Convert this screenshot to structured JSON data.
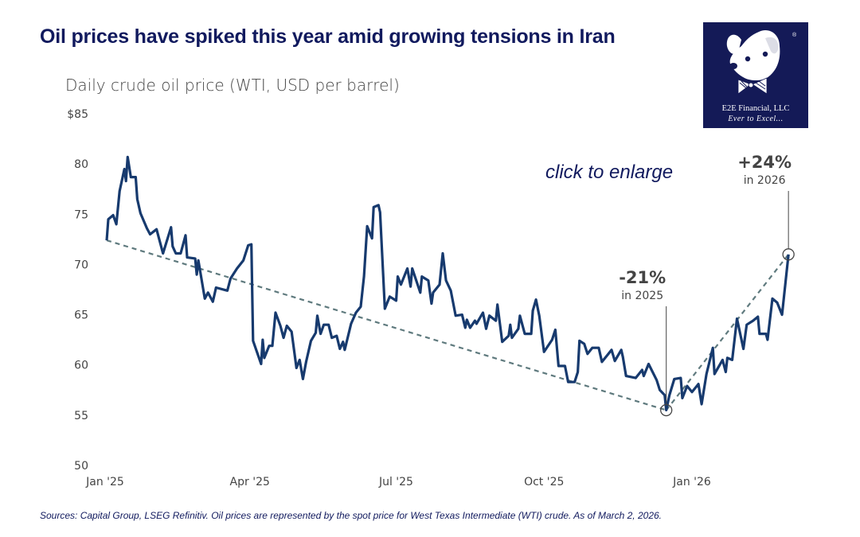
{
  "title": "Oil prices have spiked this year amid growing tensions in Iran",
  "logo": {
    "line1": "E2E Financial, LLC",
    "line2": "Ever to Excel...",
    "background": "#141a57"
  },
  "enlarge_link": "click to enlarge",
  "footnote": "Sources: Capital Group, LSEG Refinitiv. Oil prices are represented by the spot price for West Texas Intermediate (WTI) crude. As of March 2, 2026.",
  "chart_data": {
    "type": "line",
    "title": "Daily crude oil price (WTI, USD per barrel)",
    "ylim": [
      50,
      85
    ],
    "yticks": [
      {
        "value": 85,
        "label": "$85"
      },
      {
        "value": 80,
        "label": "80"
      },
      {
        "value": 75,
        "label": "75"
      },
      {
        "value": 70,
        "label": "70"
      },
      {
        "value": 65,
        "label": "65"
      },
      {
        "value": 60,
        "label": "60"
      },
      {
        "value": 55,
        "label": "55"
      },
      {
        "value": 50,
        "label": "50"
      }
    ],
    "xlim": [
      "2025-01-01",
      "2026-03-02"
    ],
    "xticks": [
      {
        "date": "2025-01-01",
        "label": "Jan '25"
      },
      {
        "date": "2025-04-01",
        "label": "Apr '25"
      },
      {
        "date": "2025-07-01",
        "label": "Jul '25"
      },
      {
        "date": "2025-10-01",
        "label": "Oct '25"
      },
      {
        "date": "2026-01-01",
        "label": "Jan '26"
      }
    ],
    "grid": false,
    "colors": {
      "line": "#173a6e",
      "trend": "#5f7a7e",
      "annotation": "#444444"
    },
    "series": [
      {
        "points": [
          [
            "2025-01-02",
            72.4
          ],
          [
            "2025-01-03",
            74.5
          ],
          [
            "2025-01-06",
            74.9
          ],
          [
            "2025-01-08",
            74.0
          ],
          [
            "2025-01-10",
            77.3
          ],
          [
            "2025-01-13",
            79.5
          ],
          [
            "2025-01-14",
            78.3
          ],
          [
            "2025-01-15",
            80.7
          ],
          [
            "2025-01-17",
            78.7
          ],
          [
            "2025-01-20",
            78.7
          ],
          [
            "2025-01-21",
            76.5
          ],
          [
            "2025-01-23",
            75.1
          ],
          [
            "2025-01-27",
            73.6
          ],
          [
            "2025-01-29",
            73.0
          ],
          [
            "2025-02-02",
            73.5
          ],
          [
            "2025-02-06",
            71.1
          ],
          [
            "2025-02-11",
            73.7
          ],
          [
            "2025-02-12",
            71.8
          ],
          [
            "2025-02-14",
            71.1
          ],
          [
            "2025-02-17",
            71.1
          ],
          [
            "2025-02-20",
            72.9
          ],
          [
            "2025-02-21",
            70.7
          ],
          [
            "2025-02-26",
            70.6
          ],
          [
            "2025-02-27",
            69.0
          ],
          [
            "2025-02-28",
            70.4
          ],
          [
            "2025-03-04",
            66.6
          ],
          [
            "2025-03-06",
            67.2
          ],
          [
            "2025-03-09",
            66.3
          ],
          [
            "2025-03-11",
            67.7
          ],
          [
            "2025-03-18",
            67.4
          ],
          [
            "2025-03-20",
            68.6
          ],
          [
            "2025-03-24",
            69.6
          ],
          [
            "2025-03-28",
            70.4
          ],
          [
            "2025-03-31",
            71.9
          ],
          [
            "2025-04-02",
            72.0
          ],
          [
            "2025-04-03",
            62.4
          ],
          [
            "2025-04-08",
            60.1
          ],
          [
            "2025-04-09",
            62.5
          ],
          [
            "2025-04-10",
            60.7
          ],
          [
            "2025-04-13",
            61.9
          ],
          [
            "2025-04-15",
            61.9
          ],
          [
            "2025-04-17",
            65.2
          ],
          [
            "2025-04-20",
            63.9
          ],
          [
            "2025-04-22",
            62.7
          ],
          [
            "2025-04-24",
            63.9
          ],
          [
            "2025-04-27",
            63.3
          ],
          [
            "2025-04-30",
            59.7
          ],
          [
            "2025-05-02",
            60.5
          ],
          [
            "2025-05-04",
            58.6
          ],
          [
            "2025-05-06",
            60.3
          ],
          [
            "2025-05-09",
            62.4
          ],
          [
            "2025-05-12",
            63.2
          ],
          [
            "2025-05-13",
            64.9
          ],
          [
            "2025-05-15",
            63.1
          ],
          [
            "2025-05-17",
            64.0
          ],
          [
            "2025-05-20",
            64.0
          ],
          [
            "2025-05-22",
            62.7
          ],
          [
            "2025-05-25",
            62.9
          ],
          [
            "2025-05-27",
            61.6
          ],
          [
            "2025-05-29",
            62.3
          ],
          [
            "2025-05-30",
            61.5
          ],
          [
            "2025-06-03",
            64.1
          ],
          [
            "2025-06-06",
            65.2
          ],
          [
            "2025-06-09",
            65.8
          ],
          [
            "2025-06-11",
            68.8
          ],
          [
            "2025-06-13",
            73.8
          ],
          [
            "2025-06-16",
            72.6
          ],
          [
            "2025-06-17",
            75.7
          ],
          [
            "2025-06-20",
            75.9
          ],
          [
            "2025-06-21",
            75.2
          ],
          [
            "2025-06-24",
            65.6
          ],
          [
            "2025-06-27",
            66.8
          ],
          [
            "2025-07-01",
            66.4
          ],
          [
            "2025-07-02",
            68.8
          ],
          [
            "2025-07-04",
            68.0
          ],
          [
            "2025-07-08",
            69.6
          ],
          [
            "2025-07-10",
            67.8
          ],
          [
            "2025-07-11",
            69.6
          ],
          [
            "2025-07-16",
            67.2
          ],
          [
            "2025-07-17",
            68.8
          ],
          [
            "2025-07-21",
            68.4
          ],
          [
            "2025-07-23",
            66.1
          ],
          [
            "2025-07-24",
            67.2
          ],
          [
            "2025-07-28",
            68.0
          ],
          [
            "2025-07-30",
            71.1
          ],
          [
            "2025-08-01",
            68.4
          ],
          [
            "2025-08-04",
            67.4
          ],
          [
            "2025-08-07",
            64.9
          ],
          [
            "2025-08-11",
            65.0
          ],
          [
            "2025-08-13",
            63.7
          ],
          [
            "2025-08-14",
            64.5
          ],
          [
            "2025-08-16",
            63.7
          ],
          [
            "2025-08-19",
            64.4
          ],
          [
            "2025-08-20",
            64.1
          ],
          [
            "2025-08-24",
            65.2
          ],
          [
            "2025-08-26",
            63.6
          ],
          [
            "2025-08-28",
            64.9
          ],
          [
            "2025-09-01",
            64.4
          ],
          [
            "2025-09-02",
            66.0
          ],
          [
            "2025-09-05",
            62.3
          ],
          [
            "2025-09-09",
            62.9
          ],
          [
            "2025-09-10",
            64.0
          ],
          [
            "2025-09-11",
            62.7
          ],
          [
            "2025-09-15",
            63.6
          ],
          [
            "2025-09-16",
            64.9
          ],
          [
            "2025-09-19",
            63.1
          ],
          [
            "2025-09-23",
            63.1
          ],
          [
            "2025-09-24",
            65.4
          ],
          [
            "2025-09-26",
            66.5
          ],
          [
            "2025-09-28",
            64.9
          ],
          [
            "2025-10-01",
            61.3
          ],
          [
            "2025-10-06",
            62.5
          ],
          [
            "2025-10-08",
            63.5
          ],
          [
            "2025-10-10",
            59.9
          ],
          [
            "2025-10-14",
            59.9
          ],
          [
            "2025-10-16",
            58.3
          ],
          [
            "2025-10-20",
            58.3
          ],
          [
            "2025-10-22",
            59.3
          ],
          [
            "2025-10-23",
            62.4
          ],
          [
            "2025-10-26",
            62.1
          ],
          [
            "2025-10-28",
            61.1
          ],
          [
            "2025-10-31",
            61.7
          ],
          [
            "2025-11-04",
            61.7
          ],
          [
            "2025-11-06",
            60.3
          ],
          [
            "2025-11-12",
            61.5
          ],
          [
            "2025-11-14",
            60.4
          ],
          [
            "2025-11-18",
            61.5
          ],
          [
            "2025-11-19",
            60.8
          ],
          [
            "2025-11-21",
            58.9
          ],
          [
            "2025-11-27",
            58.7
          ],
          [
            "2025-12-01",
            59.5
          ],
          [
            "2025-12-02",
            58.9
          ],
          [
            "2025-12-05",
            60.1
          ],
          [
            "2025-12-10",
            58.5
          ],
          [
            "2025-12-12",
            57.5
          ],
          [
            "2025-12-15",
            57.0
          ],
          [
            "2025-12-16",
            55.5
          ],
          [
            "2025-12-18",
            57.0
          ],
          [
            "2025-12-21",
            58.6
          ],
          [
            "2025-12-25",
            58.7
          ],
          [
            "2025-12-26",
            56.7
          ],
          [
            "2025-12-29",
            57.9
          ],
          [
            "2026-01-01",
            57.3
          ],
          [
            "2026-01-05",
            58.1
          ],
          [
            "2026-01-07",
            56.1
          ],
          [
            "2026-01-10",
            59.1
          ],
          [
            "2026-01-14",
            61.7
          ],
          [
            "2026-01-15",
            59.1
          ],
          [
            "2026-01-20",
            60.5
          ],
          [
            "2026-01-22",
            59.3
          ],
          [
            "2026-01-23",
            60.7
          ],
          [
            "2026-01-26",
            60.5
          ],
          [
            "2026-01-29",
            64.6
          ],
          [
            "2026-02-02",
            61.6
          ],
          [
            "2026-02-04",
            64.0
          ],
          [
            "2026-02-08",
            64.4
          ],
          [
            "2026-02-11",
            64.8
          ],
          [
            "2026-02-12",
            63.1
          ],
          [
            "2026-02-16",
            63.1
          ],
          [
            "2026-02-17",
            62.5
          ],
          [
            "2026-02-20",
            66.6
          ],
          [
            "2026-02-23",
            66.2
          ],
          [
            "2026-02-26",
            65.0
          ],
          [
            "2026-03-02",
            71.0
          ]
        ]
      }
    ],
    "trendlines": [
      {
        "from": [
          "2025-01-02",
          72.4
        ],
        "to": [
          "2025-12-16",
          55.5
        ]
      },
      {
        "from": [
          "2025-12-16",
          55.5
        ],
        "to": [
          "2026-03-02",
          71.0
        ]
      }
    ],
    "annotations": [
      {
        "at": [
          "2025-12-16",
          55.5
        ],
        "big": "-21%",
        "small": "in 2025"
      },
      {
        "at": [
          "2026-03-02",
          71.0
        ],
        "big": "+24%",
        "small": "in 2026"
      }
    ]
  }
}
